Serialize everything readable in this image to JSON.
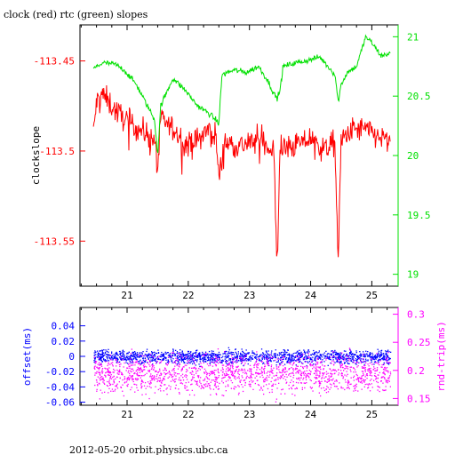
{
  "title": "clock (red) rtc (green) slopes",
  "footer": "2012-05-20 orbit.physics.ubc.ca",
  "colors": {
    "clock": "#ff0000",
    "rtc": "#00e000",
    "offset": "#0000ff",
    "rndtrip": "#ff00ff",
    "frame": "#000000"
  },
  "chart_data": [
    {
      "type": "line",
      "title": "clock (red) rtc (green) slopes",
      "x_ticks": [
        "21",
        "22",
        "23",
        "24",
        "25"
      ],
      "xlim": [
        20.23,
        25.43
      ],
      "left_axis": {
        "label": "clockslope",
        "ylim": [
          -113.575,
          -113.43
        ],
        "ticks": [
          "-113.45",
          "-113.5",
          "-113.55"
        ]
      },
      "right_axis": {
        "label": "",
        "ylim": [
          18.9,
          21.1
        ],
        "ticks": [
          "21",
          "20.5",
          "20",
          "19.5",
          "19"
        ]
      },
      "series": [
        {
          "name": "clock",
          "axis": "left",
          "x": [
            20.45,
            20.5,
            20.58,
            20.7,
            20.85,
            21.0,
            21.15,
            21.3,
            21.45,
            21.5,
            21.55,
            21.7,
            21.85,
            22.0,
            22.15,
            22.3,
            22.45,
            22.5,
            22.6,
            22.8,
            23.0,
            23.2,
            23.4,
            23.45,
            23.5,
            23.6,
            23.8,
            24.0,
            24.2,
            24.4,
            24.45,
            24.5,
            24.7,
            24.9,
            25.1,
            25.3
          ],
          "y": [
            -113.49,
            -113.473,
            -113.468,
            -113.473,
            -113.479,
            -113.483,
            -113.487,
            -113.49,
            -113.494,
            -113.51,
            -113.483,
            -113.486,
            -113.492,
            -113.497,
            -113.494,
            -113.489,
            -113.491,
            -113.515,
            -113.495,
            -113.497,
            -113.496,
            -113.493,
            -113.501,
            -113.565,
            -113.499,
            -113.499,
            -113.496,
            -113.493,
            -113.499,
            -113.496,
            -113.562,
            -113.494,
            -113.488,
            -113.488,
            -113.492,
            -113.495
          ]
        },
        {
          "name": "rtc",
          "axis": "right",
          "x": [
            20.45,
            20.6,
            20.8,
            20.95,
            21.15,
            21.3,
            21.45,
            21.5,
            21.55,
            21.75,
            21.95,
            22.15,
            22.35,
            22.45,
            22.5,
            22.55,
            22.75,
            22.95,
            23.15,
            23.3,
            23.4,
            23.45,
            23.5,
            23.55,
            23.75,
            23.95,
            24.15,
            24.4,
            24.45,
            24.5,
            24.6,
            24.75,
            24.9,
            25.0,
            25.15,
            25.3
          ],
          "y": [
            20.73,
            20.78,
            20.77,
            20.72,
            20.6,
            20.45,
            20.3,
            20.0,
            20.42,
            20.65,
            20.55,
            20.42,
            20.35,
            20.3,
            20.27,
            20.68,
            20.72,
            20.7,
            20.75,
            20.63,
            20.52,
            20.48,
            20.55,
            20.75,
            20.78,
            20.8,
            20.83,
            20.68,
            20.45,
            20.6,
            20.7,
            20.75,
            21.0,
            20.95,
            20.84,
            20.86
          ]
        }
      ]
    },
    {
      "type": "scatter",
      "x_ticks": [
        "21",
        "22",
        "23",
        "24",
        "25"
      ],
      "xlim": [
        20.23,
        25.43
      ],
      "left_axis": {
        "label": "offset(ms)",
        "ylim": [
          -0.064,
          0.064
        ],
        "ticks": [
          "0.04",
          "0.02",
          "0",
          "-0.02",
          "-0.04",
          "-0.06"
        ]
      },
      "right_axis": {
        "label": "rnd-trip(ms)",
        "ylim": [
          0.138,
          0.312
        ],
        "ticks": [
          "0.3",
          "0.25",
          "0.2",
          "0.15"
        ]
      },
      "series": [
        {
          "name": "offset",
          "axis": "left",
          "x_range": [
            20.45,
            25.3
          ],
          "center": 0.0,
          "spread": 0.008
        },
        {
          "name": "rnd-trip",
          "axis": "right",
          "x_range": [
            20.45,
            25.3
          ],
          "center": 0.195,
          "spread": 0.03
        }
      ]
    }
  ]
}
